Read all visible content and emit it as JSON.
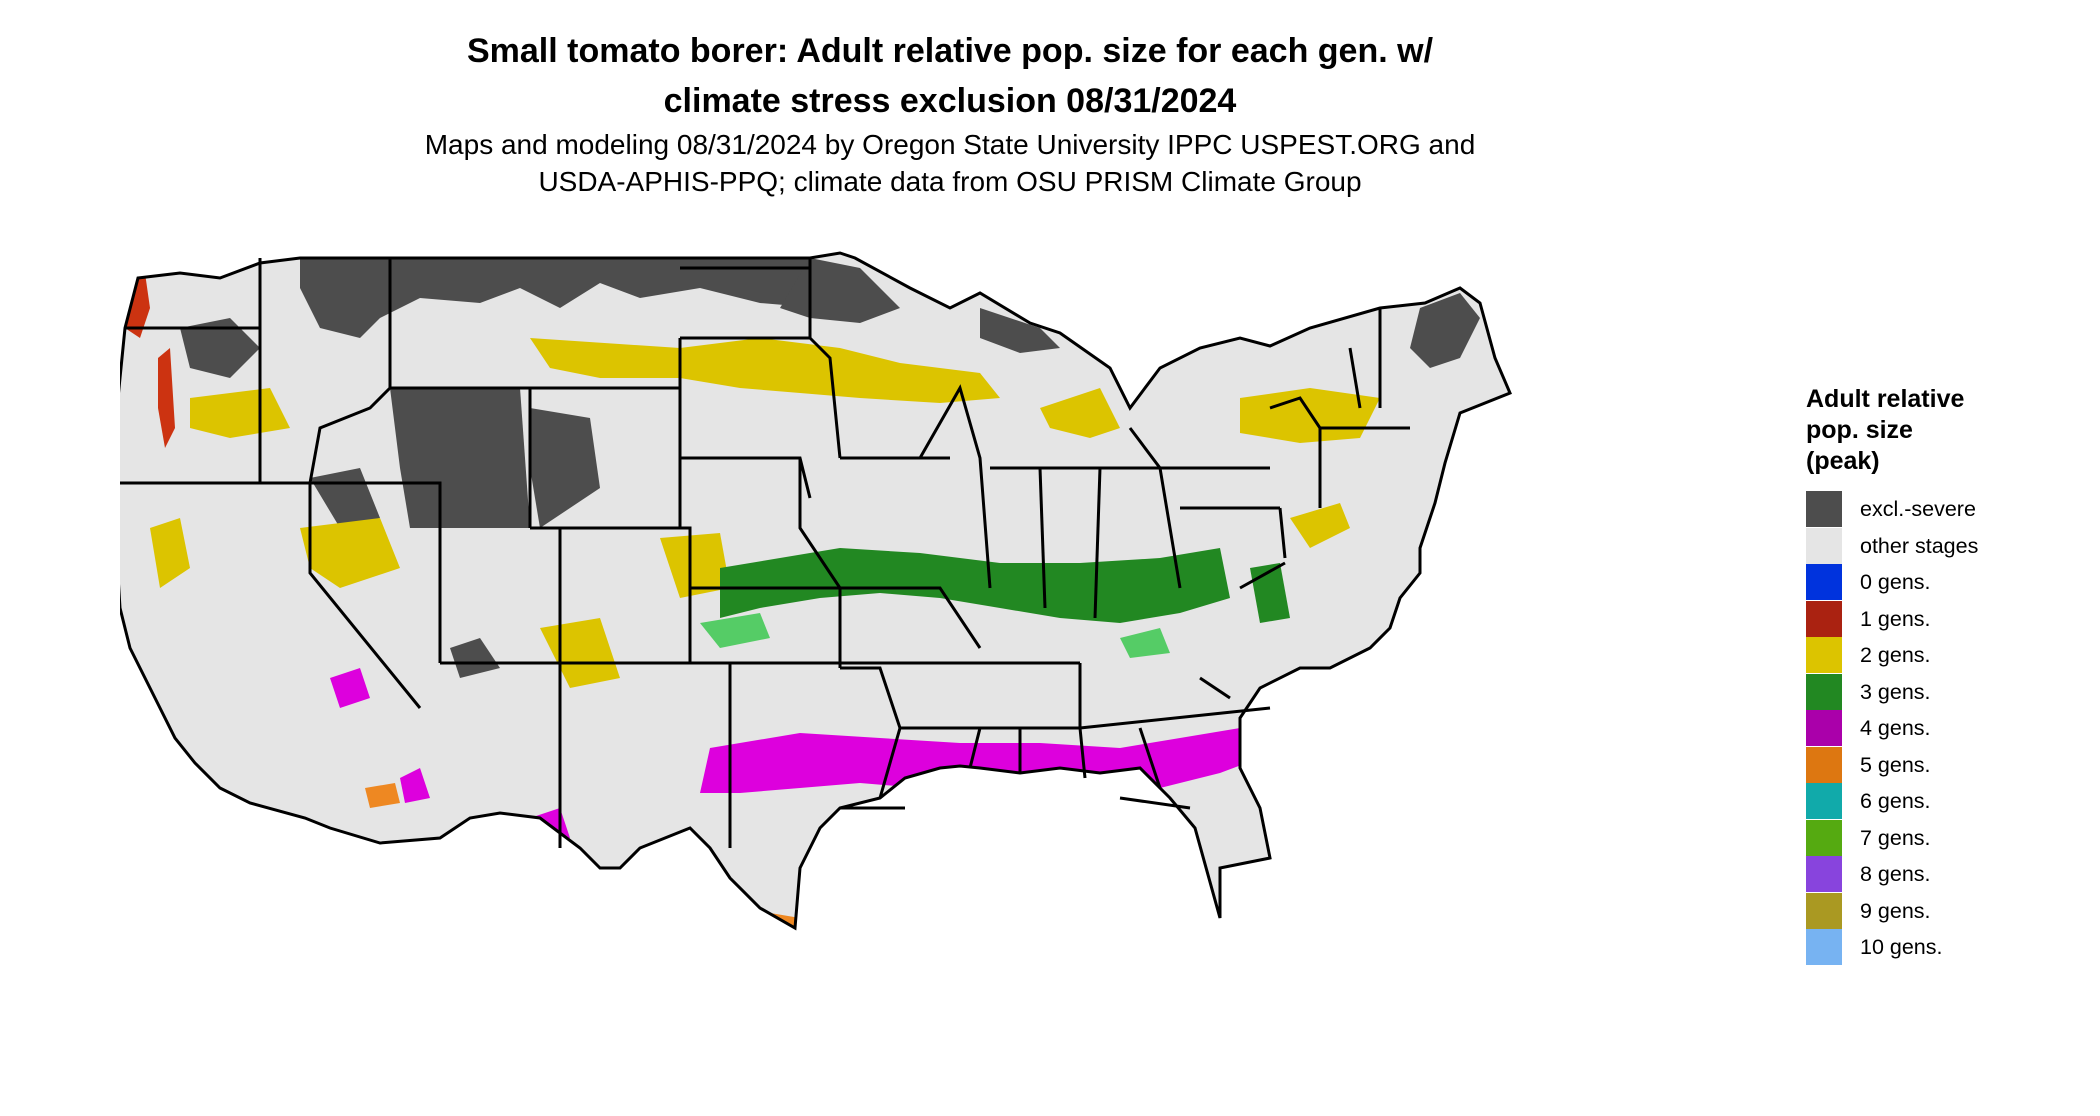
{
  "title": {
    "line1": "Small tomato borer: Adult relative pop. size for each gen. w/",
    "line2": "climate stress exclusion 08/31/2024"
  },
  "subtitle": {
    "line1": "Maps and modeling 08/31/2024 by Oregon State University IPPC USPEST.ORG and",
    "line2": "USDA-APHIS-PPQ; climate data from OSU PRISM Climate Group"
  },
  "legend": {
    "title_line1": "Adult relative",
    "title_line2": "pop. size",
    "title_line3": "(peak)",
    "items": [
      {
        "label": "excl.-severe",
        "color": "#4d4d4d"
      },
      {
        "label": "other stages",
        "color": "#e5e5e5"
      },
      {
        "label": "0 gens.",
        "color": "#0033dd"
      },
      {
        "label": "1 gens.",
        "color": "#aa2211"
      },
      {
        "label": "2 gens.",
        "color": "#dcc400"
      },
      {
        "label": "3 gens.",
        "color": "#228822"
      },
      {
        "label": "4 gens.",
        "color": "#aa00aa"
      },
      {
        "label": "5 gens.",
        "color": "#dd7711"
      },
      {
        "label": "6 gens.",
        "color": "#11aaaa"
      },
      {
        "label": "7 gens.",
        "color": "#55aa11"
      },
      {
        "label": "8 gens.",
        "color": "#8844dd"
      },
      {
        "label": "9 gens.",
        "color": "#aa9922"
      },
      {
        "label": "10 gens.",
        "color": "#77b3f2"
      }
    ]
  },
  "map": {
    "land_color": "#e5e5e5",
    "border_color": "#000000",
    "zone_colors": {
      "excluded": "#4d4d4d",
      "gen1": "#cc3311",
      "gen2": "#dcc400",
      "gen3": "#228822",
      "gen3_light": "#55cc66",
      "gen4": "#dd00dd",
      "gen5": "#ee8822",
      "gen6": "#11cccc"
    }
  }
}
